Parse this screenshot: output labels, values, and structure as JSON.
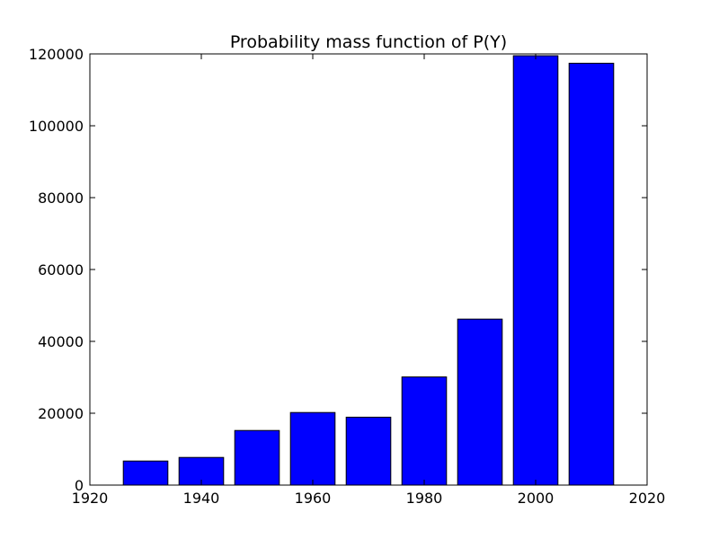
{
  "chart_data": {
    "type": "bar",
    "title": "Probability mass function of P(Y)",
    "xlabel": "",
    "ylabel": "",
    "x": [
      1930,
      1940,
      1950,
      1960,
      1970,
      1980,
      1990,
      2000,
      2010
    ],
    "values": [
      6700,
      7700,
      15200,
      20200,
      18900,
      30100,
      46200,
      119500,
      117400
    ],
    "bar_width": 8,
    "xlim": [
      1920,
      2020
    ],
    "ylim": [
      0,
      120000
    ],
    "xticks": [
      1920,
      1940,
      1960,
      1980,
      2000,
      2020
    ],
    "yticks": [
      0,
      20000,
      40000,
      60000,
      80000,
      100000,
      120000
    ],
    "grid": false,
    "colors": {
      "bar": "#0000ff",
      "edge": "#000000"
    }
  }
}
